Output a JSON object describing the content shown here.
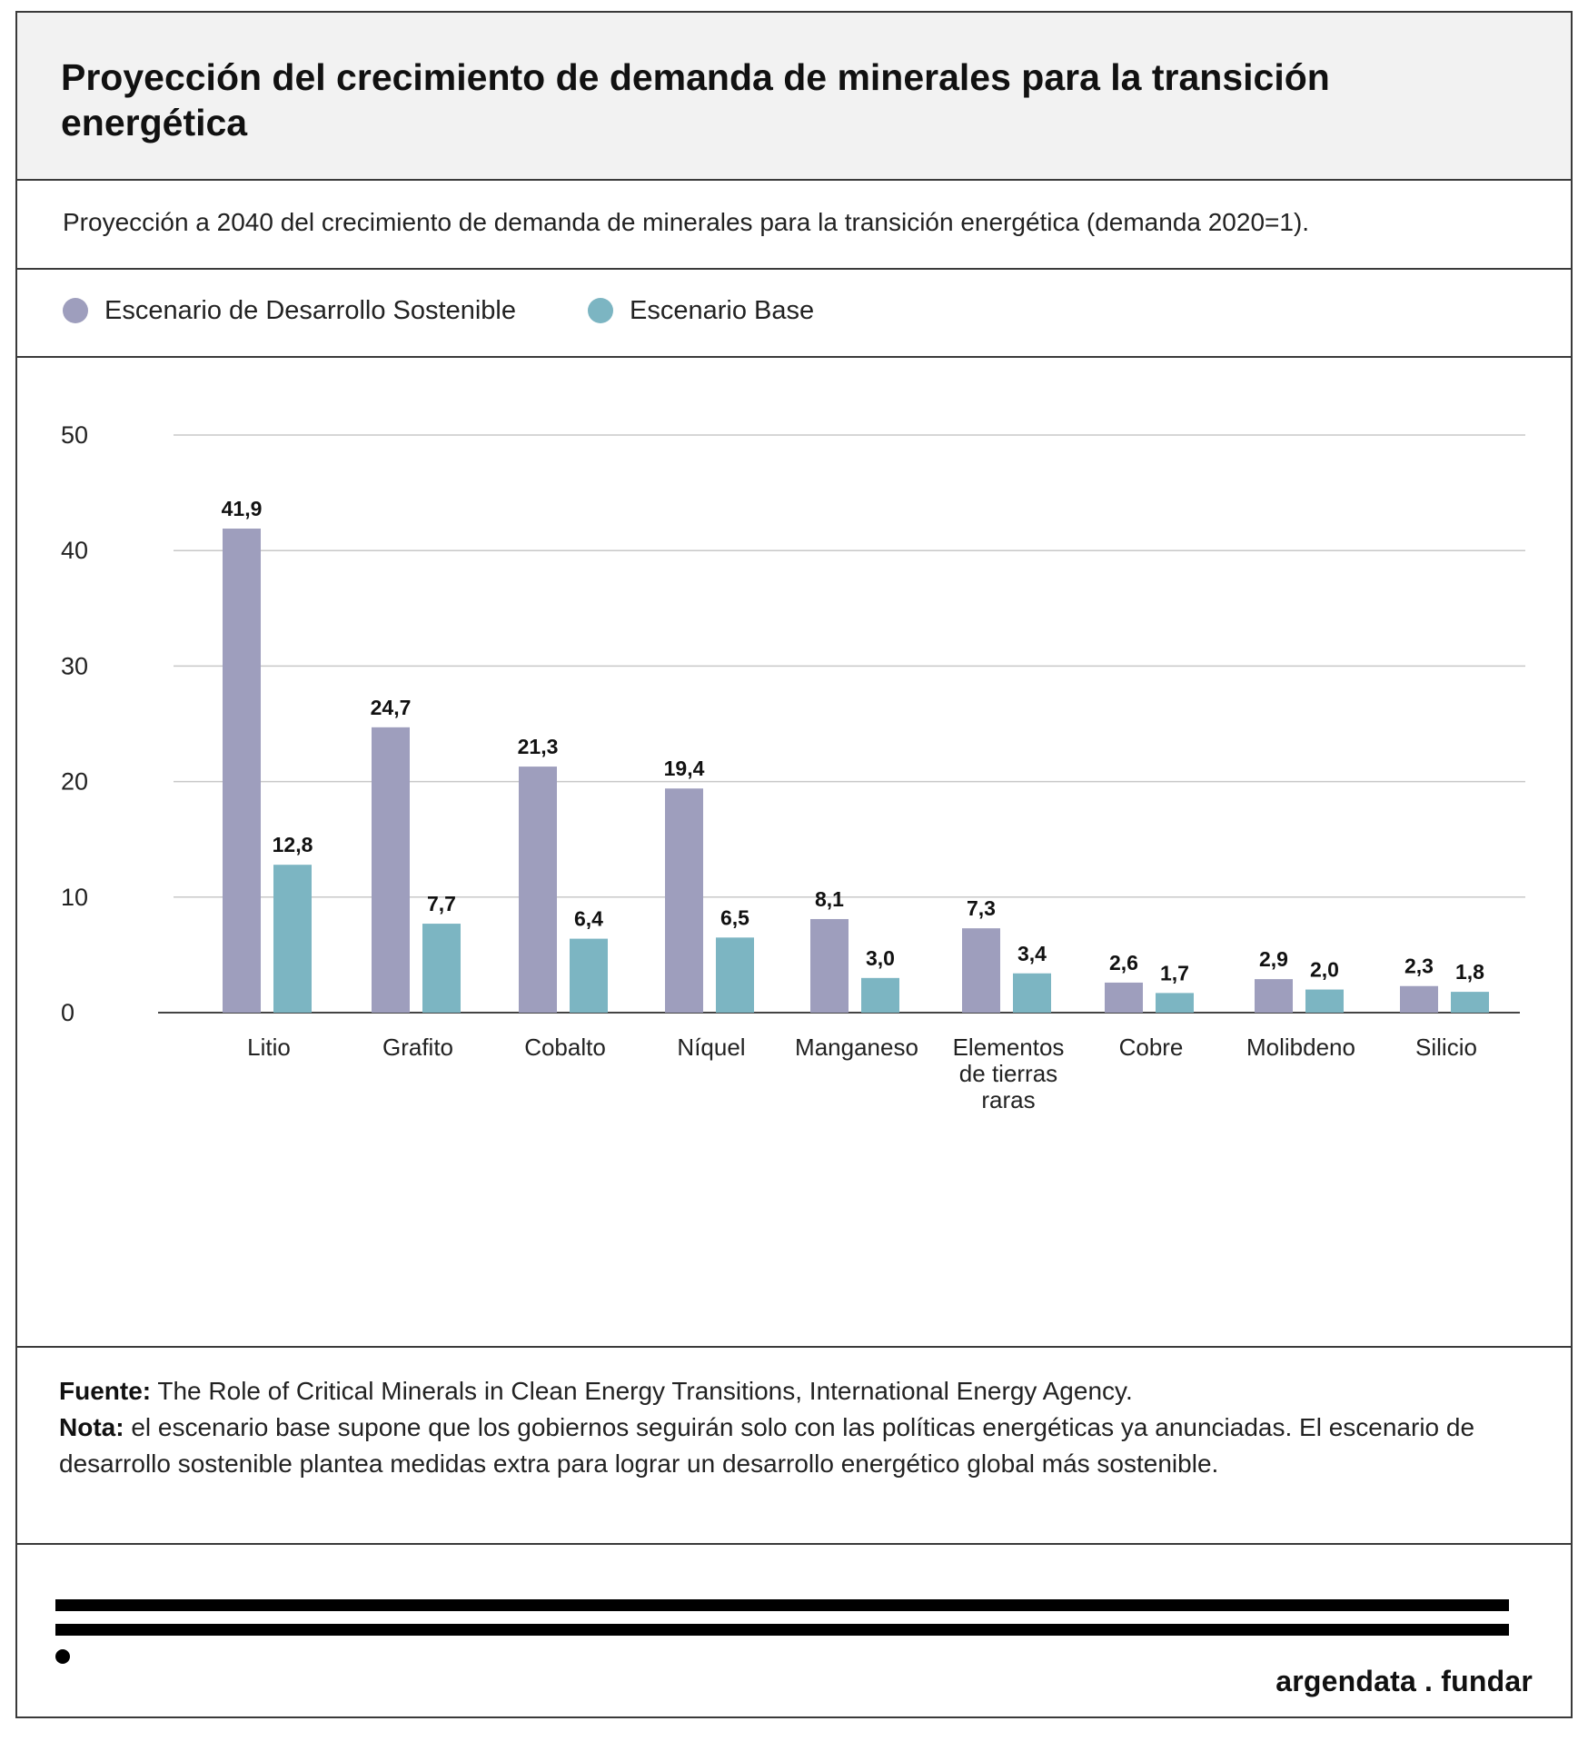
{
  "title": "Proyección del crecimiento de demanda de minerales para la transición energética",
  "subtitle": "Proyección a 2040 del crecimiento de demanda de minerales para la transición energética (demanda 2020=1).",
  "legend": [
    {
      "label": "Escenario de Desarrollo Sostenible",
      "color": "#9e9ebd"
    },
    {
      "label": "Escenario Base",
      "color": "#7cb5c2"
    }
  ],
  "notes": {
    "source_label": "Fuente:",
    "source_text": " The Role of Critical Minerals in Clean Energy Transitions, International Energy Agency.",
    "note_label": "Nota:",
    "note_text": " el escenario base supone que los gobiernos seguirán solo con las políticas energéticas ya anunciadas. El escenario de desarrollo sostenible plantea medidas extra para lograr un desarrollo energético global más sostenible."
  },
  "brand": "argendata . fundar",
  "chart_data": {
    "type": "bar",
    "categories": [
      "Litio",
      "Grafito",
      "Cobalto",
      "Níquel",
      "Manganeso",
      "Elementos de tierras raras",
      "Cobre",
      "Molibdeno",
      "Silicio"
    ],
    "series": [
      {
        "name": "Escenario de Desarrollo Sostenible",
        "color": "#9e9ebd",
        "values": [
          41.9,
          24.7,
          21.3,
          19.4,
          8.1,
          7.3,
          2.6,
          2.9,
          2.3
        ],
        "value_labels": [
          "41,9",
          "24,7",
          "21,3",
          "19,4",
          "8,1",
          "7,3",
          "2,6",
          "2,9",
          "2,3"
        ]
      },
      {
        "name": "Escenario Base",
        "color": "#7cb5c2",
        "values": [
          12.8,
          7.7,
          6.4,
          6.5,
          3.0,
          3.4,
          1.7,
          2.0,
          1.8
        ],
        "value_labels": [
          "12,8",
          "7,7",
          "6,4",
          "6,5",
          "3,0",
          "3,4",
          "1,7",
          "2,0",
          "1,8"
        ]
      }
    ],
    "yticks": [
      0,
      10,
      20,
      30,
      40,
      50
    ],
    "ylim": [
      0,
      50
    ],
    "grid": true,
    "legend_position": "top-left"
  }
}
